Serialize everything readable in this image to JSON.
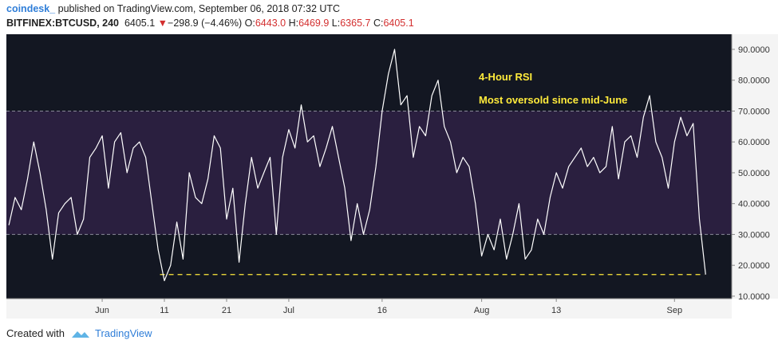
{
  "header": {
    "author": "coindesk_",
    "published": " published on TradingView.com, September 06, 2018 07:32 UTC",
    "symbol": "BITFINEX:BTCUSD, 240",
    "last": "6405.1",
    "arrow": "▼",
    "change": "−298.9 (−4.46%)",
    "open_label": "O:",
    "open": "6443.0",
    "high_label": "H:",
    "high": "6469.9",
    "low_label": "L:",
    "low": "6365.7",
    "close_label": "C:",
    "close": "6405.1"
  },
  "footer": {
    "created": "Created with",
    "brand": "TradingView"
  },
  "chart_data": {
    "type": "line",
    "annotations": [
      "4-Hour RSI",
      "Most oversold since mid-June"
    ],
    "x": [
      137,
      138,
      139,
      140,
      141,
      142,
      143,
      144,
      145,
      146,
      147,
      148,
      149,
      150,
      151,
      152,
      153,
      154,
      155,
      156,
      157,
      158,
      159,
      160,
      161,
      162,
      163,
      164,
      165,
      166,
      167,
      168,
      169,
      170,
      171,
      172,
      173,
      174,
      175,
      176,
      177,
      178,
      179,
      180,
      181,
      182,
      183,
      184,
      185,
      186,
      187,
      188,
      189,
      190,
      191,
      192,
      193,
      194,
      195,
      196,
      197,
      198,
      199,
      200,
      201,
      202,
      203,
      204,
      205,
      206,
      207,
      208,
      209,
      210,
      211,
      212,
      213,
      214,
      215,
      216,
      217,
      218,
      219,
      220,
      221,
      222,
      223,
      224,
      225,
      226,
      227,
      228,
      229,
      230,
      231,
      232,
      233,
      234,
      235,
      236,
      237,
      238,
      239,
      240,
      241,
      242,
      243,
      244,
      245,
      246,
      247,
      248,
      249
    ],
    "values": [
      33,
      42,
      38,
      48,
      60,
      50,
      38,
      22,
      37,
      40,
      42,
      30,
      35,
      55,
      58,
      62,
      45,
      60,
      63,
      50,
      58,
      60,
      55,
      40,
      25,
      15,
      20,
      34,
      22,
      50,
      42,
      40,
      48,
      62,
      58,
      35,
      45,
      21,
      40,
      55,
      45,
      50,
      55,
      30,
      55,
      64,
      58,
      72,
      60,
      62,
      52,
      58,
      65,
      55,
      45,
      28,
      40,
      30,
      38,
      52,
      70,
      82,
      90,
      72,
      75,
      55,
      65,
      62,
      75,
      80,
      65,
      60,
      50,
      55,
      52,
      40,
      23,
      30,
      25,
      35,
      22,
      30,
      40,
      22,
      25,
      35,
      30,
      42,
      50,
      45,
      52,
      55,
      58,
      52,
      55,
      50,
      52,
      65,
      48,
      60,
      62,
      55,
      68,
      75,
      60,
      55,
      45,
      60,
      68,
      62,
      66,
      35,
      17
    ],
    "color": "#ffffff",
    "xlim": [
      136.6,
      253.2
    ],
    "xticks": [
      {
        "value": 152,
        "label": "Jun"
      },
      {
        "value": 162,
        "label": "11"
      },
      {
        "value": 172,
        "label": "21"
      },
      {
        "value": 182,
        "label": "Jul"
      },
      {
        "value": 197,
        "label": "16"
      },
      {
        "value": 213,
        "label": "Aug"
      },
      {
        "value": 225,
        "label": "13"
      },
      {
        "value": 244,
        "label": "Sep"
      }
    ],
    "ylim": [
      9.2,
      94.9
    ],
    "yticks": [
      {
        "value": 10,
        "label": "10.0000"
      },
      {
        "value": 20,
        "label": "20.0000"
      },
      {
        "value": 30,
        "label": "30.0000"
      },
      {
        "value": 40,
        "label": "40.0000"
      },
      {
        "value": 50,
        "label": "50.0000"
      },
      {
        "value": 60,
        "label": "60.0000"
      },
      {
        "value": 70,
        "label": "70.0000"
      },
      {
        "value": 80,
        "label": "80.0000"
      },
      {
        "value": 90,
        "label": "90.0000"
      }
    ],
    "band": [
      30,
      70
    ],
    "band_color": "#2a1f3f",
    "support_line": {
      "value": 17,
      "x": [
        161.3,
        248.8
      ],
      "color": "#ffeb3b"
    },
    "background": "#131722"
  }
}
